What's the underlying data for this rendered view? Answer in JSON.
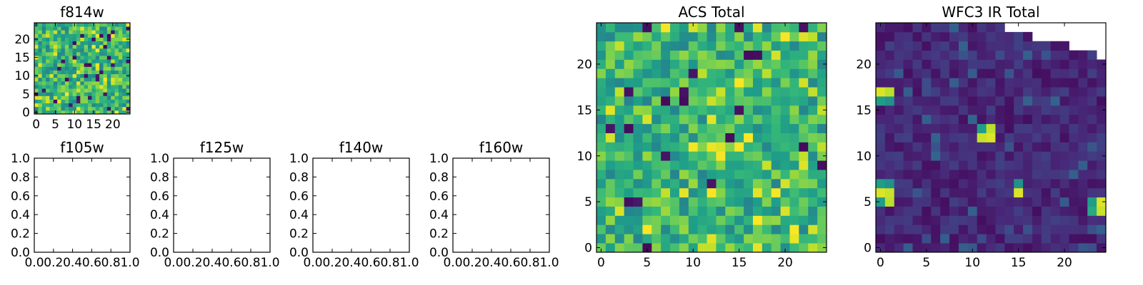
{
  "chart_data": [
    {
      "type": "heatmap",
      "title": "f814w",
      "xlabel": "",
      "ylabel": "",
      "xlim": [
        -0.5,
        24.5
      ],
      "ylim": [
        -0.5,
        24.5
      ],
      "xticks": [
        0,
        5,
        10,
        15,
        20
      ],
      "yticks": [
        0,
        5,
        10,
        15,
        20
      ],
      "grid": false,
      "colormap": "viridis",
      "vmin": 0,
      "vmax": 1,
      "grid_size": [
        25,
        25
      ],
      "description_of_values": "25x25 pixel image, values normalized 0-1 (viridis colormap), mostly mid-to-high green/yellow with scattered dark pixels",
      "z_seed": 814,
      "z_style": "noise_high"
    },
    {
      "type": "table",
      "title": "f105w",
      "xlim": [
        0.0,
        1.0
      ],
      "ylim": [
        0.0,
        1.0
      ],
      "xticks": [
        "0.0",
        "0.2",
        "0.4",
        "0.6",
        "0.8",
        "1.0"
      ],
      "yticks": [
        "0.0",
        "0.2",
        "0.4",
        "0.6",
        "0.8",
        "1.0"
      ],
      "empty": true
    },
    {
      "type": "table",
      "title": "f125w",
      "xlim": [
        0.0,
        1.0
      ],
      "ylim": [
        0.0,
        1.0
      ],
      "xticks": [
        "0.0",
        "0.2",
        "0.4",
        "0.6",
        "0.8",
        "1.0"
      ],
      "yticks": [
        "0.0",
        "0.2",
        "0.4",
        "0.6",
        "0.8",
        "1.0"
      ],
      "empty": true
    },
    {
      "type": "table",
      "title": "f140w",
      "xlim": [
        0.0,
        1.0
      ],
      "ylim": [
        0.0,
        1.0
      ],
      "xticks": [
        "0.0",
        "0.2",
        "0.4",
        "0.6",
        "0.8",
        "1.0"
      ],
      "yticks": [
        "0.0",
        "0.2",
        "0.4",
        "0.6",
        "0.8",
        "1.0"
      ],
      "empty": true
    },
    {
      "type": "table",
      "title": "f160w",
      "xlim": [
        0.0,
        1.0
      ],
      "ylim": [
        0.0,
        1.0
      ],
      "xticks": [
        "0.0",
        "0.2",
        "0.4",
        "0.6",
        "0.8",
        "1.0"
      ],
      "yticks": [
        "0.0",
        "0.2",
        "0.4",
        "0.6",
        "0.8",
        "1.0"
      ],
      "empty": true
    },
    {
      "type": "heatmap",
      "title": "ACS Total",
      "xlim": [
        -0.5,
        24.5
      ],
      "ylim": [
        -0.5,
        24.5
      ],
      "xticks": [
        0,
        5,
        10,
        15,
        20
      ],
      "yticks": [
        0,
        5,
        10,
        15,
        20
      ],
      "grid": false,
      "colormap": "viridis",
      "vmin": 0,
      "vmax": 1,
      "grid_size": [
        25,
        25
      ],
      "z_seed": 2718,
      "z_style": "noise_high"
    },
    {
      "type": "heatmap",
      "title": "WFC3 IR Total",
      "xlim": [
        -0.5,
        24.5
      ],
      "ylim": [
        -0.5,
        24.5
      ],
      "xticks": [
        0,
        5,
        10,
        15,
        20
      ],
      "yticks": [
        0,
        5,
        10,
        15,
        20
      ],
      "grid": false,
      "colormap": "viridis",
      "vmin": 0,
      "vmax": 1,
      "grid_size": [
        25,
        25
      ],
      "z_seed": 3141,
      "z_style": "noise_low",
      "hotspots": [
        {
          "x": 0,
          "y": 17,
          "value": 0.95
        },
        {
          "x": 1,
          "y": 17,
          "value": 0.9
        },
        {
          "x": 0,
          "y": 16,
          "value": 0.55
        },
        {
          "x": 1,
          "y": 16,
          "value": 0.5
        },
        {
          "x": 11,
          "y": 12,
          "value": 0.92
        },
        {
          "x": 12,
          "y": 12,
          "value": 0.95
        },
        {
          "x": 12,
          "y": 13,
          "value": 0.9
        },
        {
          "x": 11,
          "y": 13,
          "value": 0.55
        },
        {
          "x": 0,
          "y": 7,
          "value": 0.55
        },
        {
          "x": 1,
          "y": 7,
          "value": 0.5
        },
        {
          "x": 0,
          "y": 6,
          "value": 0.95
        },
        {
          "x": 1,
          "y": 6,
          "value": 0.92
        },
        {
          "x": 1,
          "y": 5,
          "value": 0.9
        },
        {
          "x": 0,
          "y": 5,
          "value": 0.55
        },
        {
          "x": 15,
          "y": 7,
          "value": 0.5
        },
        {
          "x": 15,
          "y": 6,
          "value": 0.95
        },
        {
          "x": 23,
          "y": 5,
          "value": 0.55
        },
        {
          "x": 24,
          "y": 5,
          "value": 0.95
        },
        {
          "x": 23,
          "y": 4,
          "value": 0.6
        },
        {
          "x": 24,
          "y": 4,
          "value": 0.92
        }
      ],
      "missing_region_top_right": [
        {
          "from_col": 14,
          "rows": [
            24
          ]
        },
        {
          "from_col": 17,
          "rows": [
            23
          ]
        },
        {
          "from_col": 21,
          "rows": [
            22
          ]
        },
        {
          "from_col": 24,
          "rows": [
            21
          ]
        }
      ]
    }
  ]
}
